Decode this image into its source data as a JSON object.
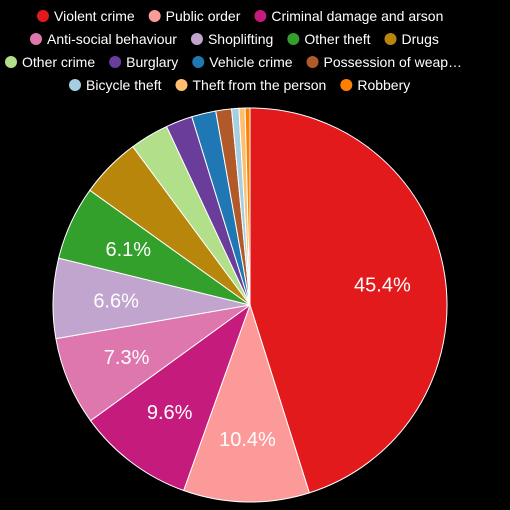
{
  "chart_data": {
    "type": "pie",
    "background": "#000000",
    "label_color": "#ffffff",
    "slices": [
      {
        "label": "Violent crime",
        "value": 45.4,
        "display": "45.4%",
        "color": "#e31a1c"
      },
      {
        "label": "Public order",
        "value": 10.4,
        "display": "10.4%",
        "color": "#fb9a99"
      },
      {
        "label": "Criminal damage and arson",
        "value": 9.6,
        "display": "9.6%",
        "color": "#c51b7d"
      },
      {
        "label": "Anti-social behaviour",
        "value": 7.3,
        "display": "7.3%",
        "color": "#de77ae"
      },
      {
        "label": "Shoplifting",
        "value": 6.6,
        "display": "6.6%",
        "color": "#c2a5cf"
      },
      {
        "label": "Other theft",
        "value": 6.1,
        "display": "6.1%",
        "color": "#33a02c"
      },
      {
        "label": "Drugs",
        "value": 5.0,
        "display": "",
        "color": "#b8860b"
      },
      {
        "label": "Other crime",
        "value": 3.2,
        "display": "",
        "color": "#b2df8a"
      },
      {
        "label": "Burglary",
        "value": 2.2,
        "display": "",
        "color": "#6a3d9a"
      },
      {
        "label": "Vehicle crime",
        "value": 2.0,
        "display": "",
        "color": "#1f78b4"
      },
      {
        "label": "Possession of weap…",
        "value": 1.3,
        "display": "",
        "color": "#b15928"
      },
      {
        "label": "Bicycle theft",
        "value": 0.6,
        "display": "",
        "color": "#a6cee3"
      },
      {
        "label": "Theft from the person",
        "value": 0.5,
        "display": "",
        "color": "#fdbf6f"
      },
      {
        "label": "Robbery",
        "value": 0.4,
        "display": "",
        "color": "#ff7f00"
      }
    ]
  }
}
